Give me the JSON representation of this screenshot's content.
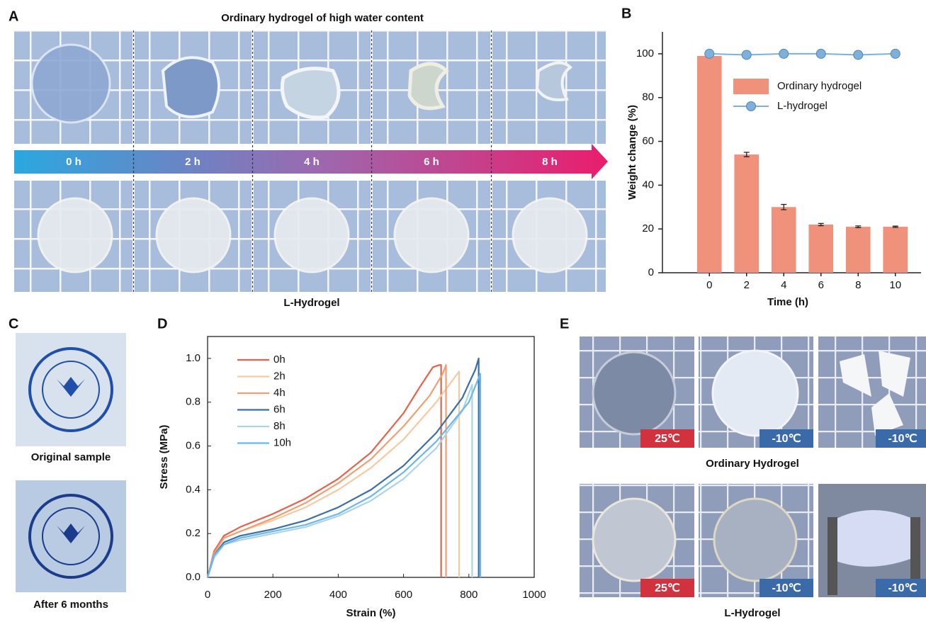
{
  "panels": {
    "A": {
      "label": "A",
      "title": "Ordinary hydrogel of high water content",
      "times": [
        "0 h",
        "2 h",
        "4 h",
        "6 h",
        "8 h"
      ],
      "bottom_label": "L-Hydrogel"
    },
    "C": {
      "label": "C",
      "captions": [
        "Original sample",
        "After 6 months"
      ]
    },
    "E": {
      "label": "E",
      "top_temps": [
        "25℃",
        "-10℃",
        "-10℃"
      ],
      "bottom_temps": [
        "25℃",
        "-10℃",
        "-10℃"
      ],
      "captions": [
        "Ordinary Hydrogel",
        "L-Hydrogel"
      ]
    }
  },
  "chart_data": [
    {
      "type": "bar",
      "panel": "B",
      "categories": [
        "0",
        "2",
        "4",
        "6",
        "8",
        "10"
      ],
      "series": [
        {
          "name": "Ordinary hydrogel",
          "type": "bar",
          "color": "#f0917c",
          "values": [
            99,
            54,
            30,
            22,
            21,
            21
          ],
          "errors": [
            0,
            1,
            1.2,
            0.5,
            0.4,
            0.3
          ]
        },
        {
          "name": "L-hydrogel",
          "type": "line",
          "color": "#7fb0d8",
          "values": [
            100,
            99.5,
            100,
            100,
            99.5,
            100
          ]
        }
      ],
      "ylim": [
        0,
        110
      ],
      "yticks": [
        0,
        20,
        40,
        60,
        80,
        100
      ],
      "xlabel": "Time (h)",
      "ylabel": "Weight change (%)"
    },
    {
      "type": "line",
      "panel": "D",
      "xlim": [
        0,
        1000
      ],
      "xticks": [
        0,
        200,
        400,
        600,
        800,
        1000
      ],
      "ylim": [
        0,
        1.1
      ],
      "yticks": [
        {
          "value": 0,
          "label": "0.0"
        },
        0.2,
        0.4,
        0.6,
        0.8,
        {
          "value": 1,
          "label": "1.0"
        }
      ],
      "xlabel": "Strain (%)",
      "ylabel": "Stress (MPa)",
      "legend": "upper left",
      "series": [
        {
          "name": "0h",
          "color": "#e8604a",
          "x": [
            0,
            20,
            50,
            100,
            200,
            300,
            400,
            500,
            600,
            650,
            690,
            710,
            715,
            715
          ],
          "values": [
            0,
            0.12,
            0.19,
            0.23,
            0.29,
            0.36,
            0.45,
            0.57,
            0.75,
            0.87,
            0.96,
            0.97,
            0.97,
            0
          ]
        },
        {
          "name": "2h",
          "color": "#f8c9a0",
          "x": [
            0,
            20,
            50,
            100,
            200,
            300,
            400,
            500,
            600,
            700,
            750,
            770,
            770
          ],
          "values": [
            0,
            0.11,
            0.18,
            0.21,
            0.26,
            0.32,
            0.4,
            0.5,
            0.63,
            0.8,
            0.9,
            0.94,
            0
          ]
        },
        {
          "name": "4h",
          "color": "#f0a070",
          "x": [
            0,
            20,
            50,
            100,
            200,
            300,
            400,
            500,
            600,
            680,
            720,
            730,
            730
          ],
          "values": [
            0,
            0.11,
            0.18,
            0.21,
            0.27,
            0.34,
            0.43,
            0.54,
            0.69,
            0.83,
            0.93,
            0.97,
            0
          ]
        },
        {
          "name": "6h",
          "color": "#3a6ea8",
          "x": [
            0,
            20,
            50,
            100,
            200,
            300,
            400,
            500,
            600,
            700,
            780,
            820,
            830,
            830
          ],
          "values": [
            0,
            0.1,
            0.16,
            0.19,
            0.22,
            0.26,
            0.32,
            0.4,
            0.51,
            0.66,
            0.82,
            0.95,
            1,
            0
          ]
        },
        {
          "name": "8h",
          "color": "#aad4ee",
          "x": [
            0,
            20,
            50,
            100,
            200,
            300,
            400,
            500,
            600,
            700,
            780,
            810,
            810
          ],
          "values": [
            0,
            0.09,
            0.15,
            0.17,
            0.2,
            0.23,
            0.28,
            0.35,
            0.45,
            0.59,
            0.76,
            0.88,
            0
          ]
        },
        {
          "name": "10h",
          "color": "#6ab8ea",
          "x": [
            0,
            20,
            50,
            100,
            200,
            300,
            400,
            500,
            600,
            700,
            800,
            835,
            835
          ],
          "values": [
            0,
            0.1,
            0.15,
            0.18,
            0.21,
            0.24,
            0.29,
            0.37,
            0.48,
            0.62,
            0.8,
            0.93,
            0
          ]
        }
      ]
    }
  ]
}
